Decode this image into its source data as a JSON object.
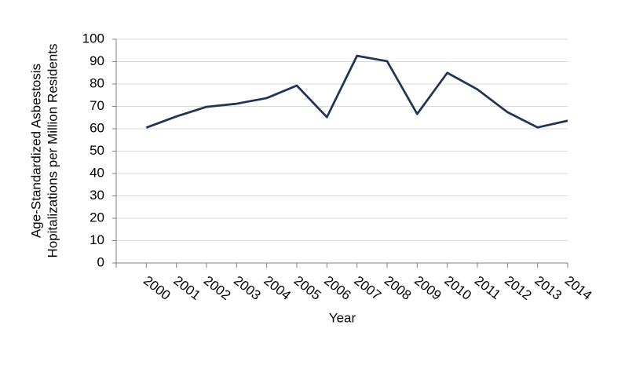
{
  "chart_data": {
    "type": "line",
    "xlabel": "Year",
    "ylabel": [
      "Age-Standardized Asbestosis",
      "Hopitalizations per Million Residents"
    ],
    "categories": [
      "2000",
      "2001",
      "2002",
      "2003",
      "2004",
      "2005",
      "2006",
      "2007",
      "2008",
      "2009",
      "2010",
      "2011",
      "2012",
      "2013",
      "2014"
    ],
    "series": [
      {
        "color": "#1f3556",
        "values": [
          60.5,
          65.5,
          69.8,
          71.2,
          73.7,
          79.3,
          65.2,
          92.6,
          90.2,
          66.6,
          85,
          77.6,
          67.4,
          60.6,
          63.6
        ]
      }
    ],
    "ylim": [
      0,
      100
    ],
    "yticks": [
      0,
      10,
      20,
      30,
      40,
      50,
      60,
      70,
      80,
      90,
      100
    ],
    "grid": true
  }
}
